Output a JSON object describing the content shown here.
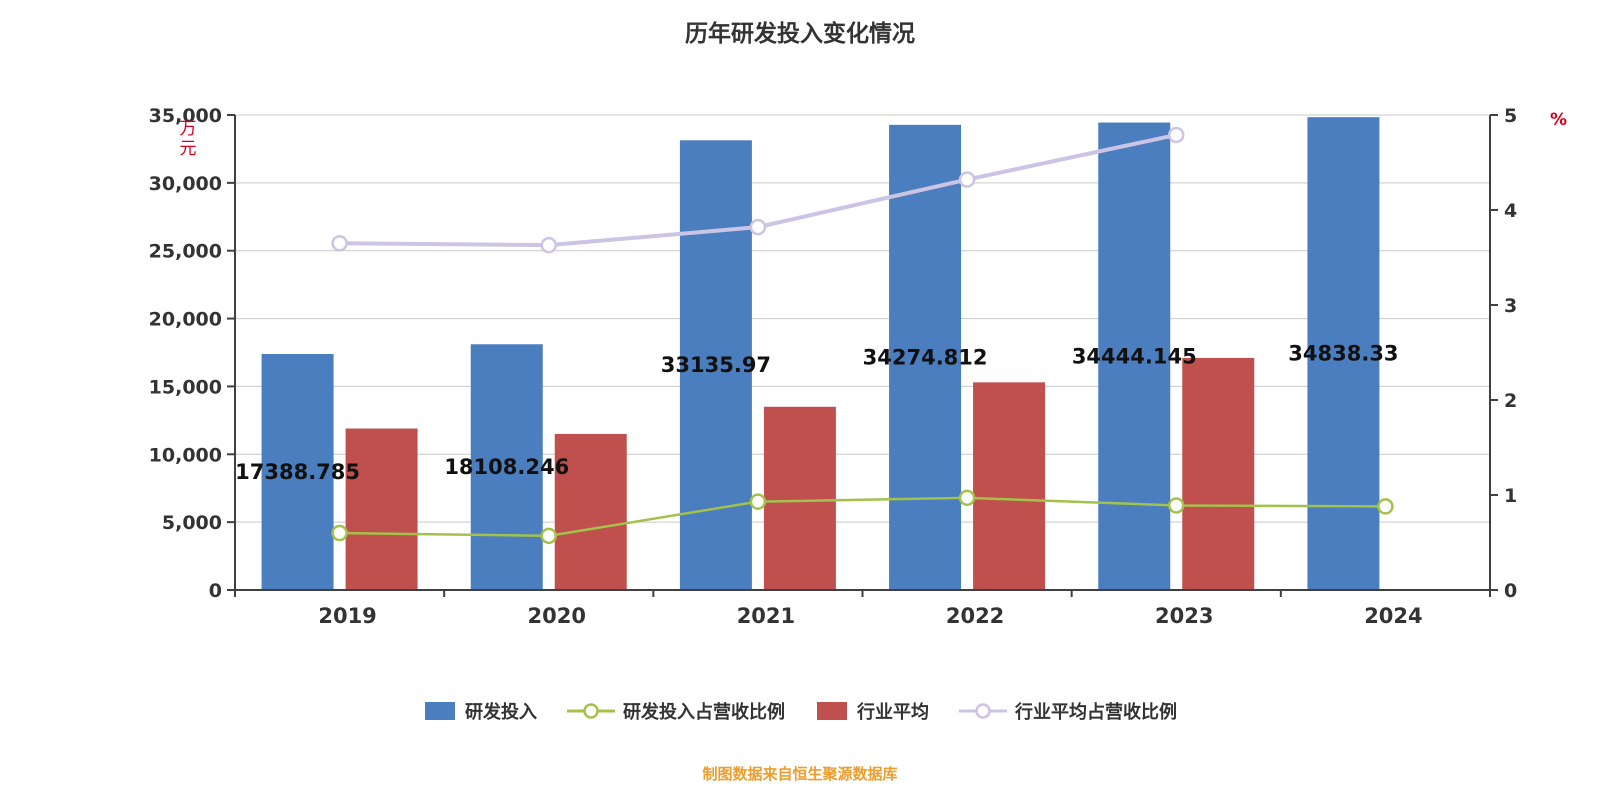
{
  "title": "历年研发投入变化情况",
  "footer": {
    "source_note": "制图数据来自恒生聚源数据库"
  },
  "colors": {
    "rnd_bar": "#4B7EBE",
    "industry_bar": "#C0504D",
    "rnd_ratio_line": "#A3C14B",
    "industry_ratio_line": "#CCC4E4",
    "axis_text": "#333333",
    "axis_line": "#404040",
    "grid": "#C9C9C9",
    "unit_text": "#D9001B",
    "value_label": "#111111",
    "footer_text": "#EE9D2D"
  },
  "legend": {
    "items": [
      {
        "label": "研发投入",
        "type": "bar",
        "color": "#4B7EBE"
      },
      {
        "label": "研发投入占营收比例",
        "type": "line",
        "color": "#A3C14B"
      },
      {
        "label": "行业平均",
        "type": "bar",
        "color": "#C0504D"
      },
      {
        "label": "行业平均占营收比例",
        "type": "line",
        "color": "#CCC4E4"
      }
    ]
  },
  "chart_data": {
    "type": "bar",
    "subtype": "bar-line-combo",
    "categories": [
      "2019",
      "2020",
      "2021",
      "2022",
      "2023",
      "2024"
    ],
    "left_axis": {
      "unit": "万元",
      "min": 0,
      "max": 35000,
      "step": 5000
    },
    "right_axis": {
      "unit": "%",
      "min": 0,
      "max": 5,
      "step": 1
    },
    "grid": true,
    "legend_position": "bottom",
    "series": [
      {
        "name": "研发投入",
        "type": "bar",
        "axis": "left",
        "color": "#4B7EBE",
        "values": [
          17388.785,
          18108.246,
          33135.97,
          34274.812,
          34444.145,
          34838.33
        ],
        "labels": [
          "17388.785",
          "18108.246",
          "33135.97",
          "34274.812",
          "34444.145",
          "34838.33"
        ]
      },
      {
        "name": "行业平均",
        "type": "bar",
        "axis": "left",
        "color": "#C0504D",
        "values": [
          11900,
          11500,
          13500,
          15300,
          17100,
          null
        ]
      },
      {
        "name": "研发投入占营收比例",
        "type": "line",
        "axis": "right",
        "color": "#A3C14B",
        "values": [
          0.6,
          0.57,
          0.93,
          0.97,
          0.89,
          0.88
        ]
      },
      {
        "name": "行业平均占营收比例",
        "type": "line",
        "axis": "right",
        "color": "#CCC4E4",
        "values": [
          3.65,
          3.63,
          3.82,
          4.32,
          4.79,
          null
        ]
      }
    ]
  }
}
